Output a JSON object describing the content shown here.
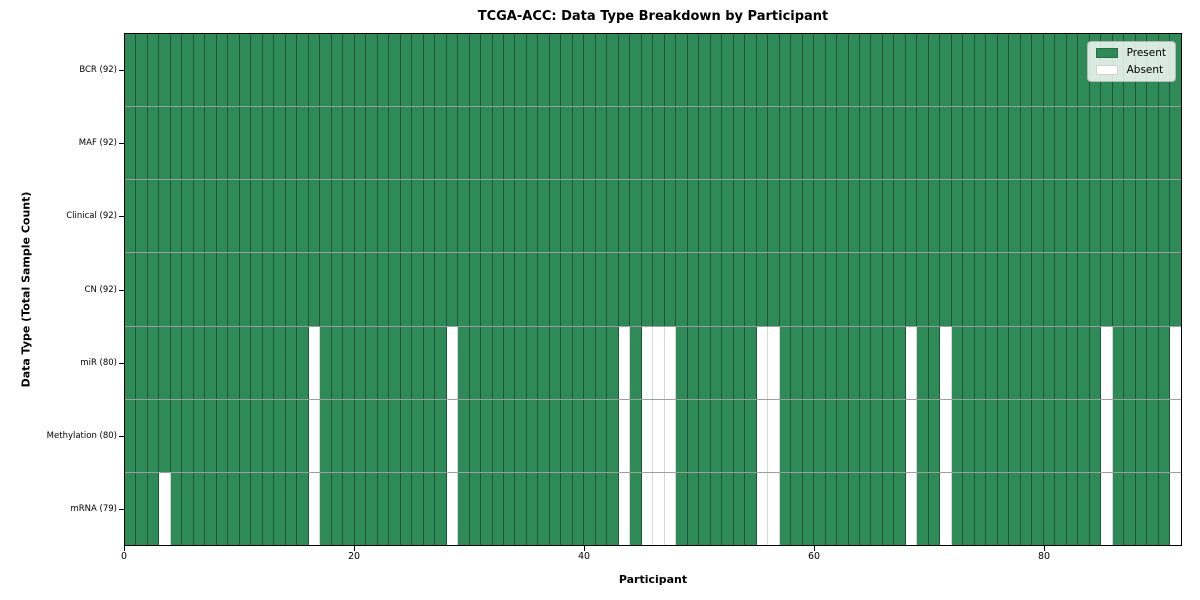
{
  "title": "TCGA-ACC: Data Type Breakdown by Participant",
  "axes": {
    "xlabel": "Participant",
    "ylabel": "Data Type (Total Sample Count)"
  },
  "legend": {
    "present_label": "Present",
    "absent_label": "Absent",
    "position": "upper right"
  },
  "colors": {
    "present": "#2E8B57",
    "absent": "#FFFFFF",
    "frame": "#000000"
  },
  "chart_data": {
    "type": "heatmap",
    "title": "TCGA-ACC: Data Type Breakdown by Participant",
    "xlabel": "Participant",
    "ylabel": "Data Type (Total Sample Count)",
    "x_ticks": [
      0,
      20,
      40,
      60,
      80
    ],
    "x_range": [
      0,
      92
    ],
    "n_participants": 92,
    "grid": false,
    "legend_entries": [
      "Present",
      "Absent"
    ],
    "legend_position": "upper right",
    "cell_states": [
      "present",
      "absent"
    ],
    "rows": [
      {
        "label": "BCR (92)",
        "data_type": "BCR",
        "total": 92,
        "absent_participants": []
      },
      {
        "label": "MAF (92)",
        "data_type": "MAF",
        "total": 92,
        "absent_participants": []
      },
      {
        "label": "Clinical (92)",
        "data_type": "Clinical",
        "total": 92,
        "absent_participants": []
      },
      {
        "label": "CN (92)",
        "data_type": "CN",
        "total": 92,
        "absent_participants": []
      },
      {
        "label": "miR (80)",
        "data_type": "miR",
        "total": 80,
        "absent_participants": [
          16,
          28,
          43,
          45,
          46,
          47,
          55,
          56,
          68,
          71,
          85,
          91
        ]
      },
      {
        "label": "Methylation (80)",
        "data_type": "Methylation",
        "total": 80,
        "absent_participants": [
          16,
          28,
          43,
          45,
          46,
          47,
          55,
          56,
          68,
          71,
          85,
          91
        ]
      },
      {
        "label": "mRNA (79)",
        "data_type": "mRNA",
        "total": 79,
        "absent_participants": [
          3,
          16,
          28,
          43,
          45,
          46,
          47,
          55,
          56,
          68,
          71,
          85,
          91
        ]
      }
    ]
  }
}
